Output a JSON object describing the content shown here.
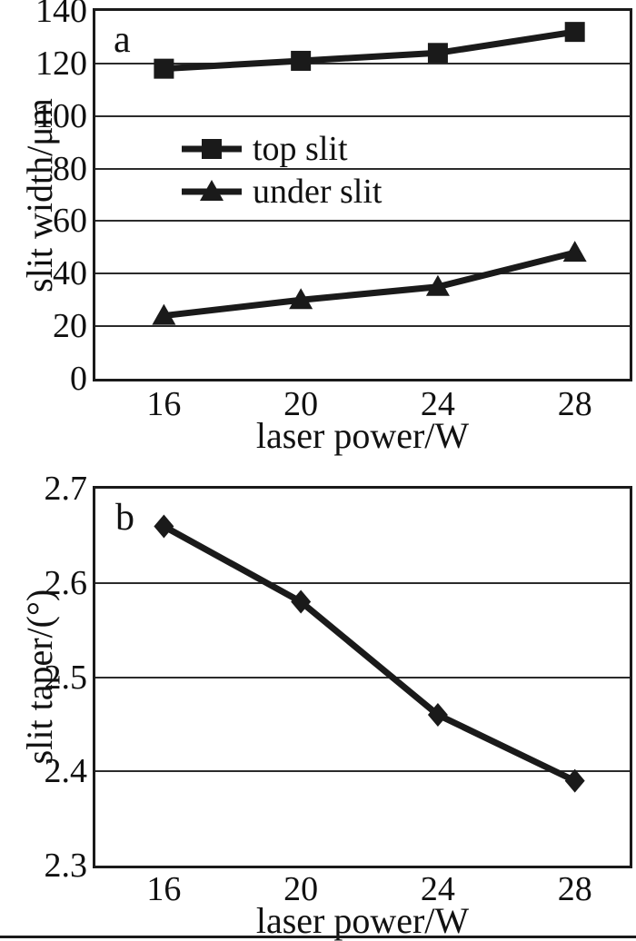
{
  "figure": {
    "panels": [
      {
        "letter": "a"
      },
      {
        "letter": "b"
      }
    ]
  },
  "colors": {
    "line": "#1a1a1a",
    "grid": "#2b2b2b",
    "text": "#111111",
    "background": "#ffffff"
  },
  "chart_data": [
    {
      "type": "line",
      "panel_label": "a",
      "x": [
        16,
        20,
        24,
        28
      ],
      "xtick_labels": [
        "16",
        "20",
        "24",
        "28"
      ],
      "xlabel": "laser power/W",
      "ylabel": "slit width/μm",
      "ylim": [
        0,
        140
      ],
      "xlim": [
        14,
        29.6
      ],
      "yticks": [
        0,
        20,
        40,
        60,
        80,
        100,
        120,
        140
      ],
      "ytick_labels": [
        "0",
        "20",
        "40",
        "60",
        "80",
        "100",
        "120",
        "140"
      ],
      "grid": true,
      "legend_position": "inside-center-left",
      "series": [
        {
          "name": "top slit",
          "marker": "square",
          "values": [
            118,
            121,
            124,
            132
          ]
        },
        {
          "name": "under slit",
          "marker": "triangle",
          "values": [
            24,
            30,
            35,
            48
          ]
        }
      ]
    },
    {
      "type": "line",
      "panel_label": "b",
      "x": [
        16,
        20,
        24,
        28
      ],
      "xtick_labels": [
        "16",
        "20",
        "24",
        "28"
      ],
      "xlabel": "laser power/W",
      "ylabel": "slit taper/(°)",
      "ylim": [
        2.3,
        2.7
      ],
      "xlim": [
        14,
        29.6
      ],
      "yticks": [
        2.3,
        2.4,
        2.5,
        2.6,
        2.7
      ],
      "ytick_labels": [
        "2.3",
        "2.4",
        "2.5",
        "2.6",
        "2.7"
      ],
      "grid": true,
      "legend_position": "none",
      "series": [
        {
          "name": "slit taper",
          "marker": "diamond",
          "values": [
            2.66,
            2.58,
            2.46,
            2.39
          ]
        }
      ]
    }
  ]
}
